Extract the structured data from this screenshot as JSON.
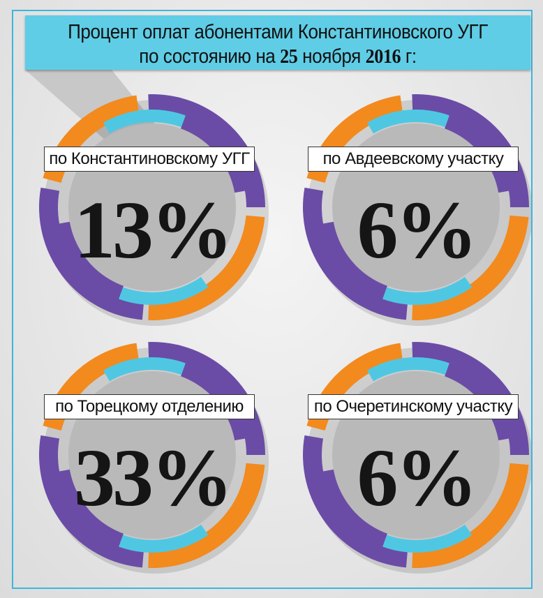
{
  "header": {
    "line1": "Процент оплат абонентами Константиновского УГГ",
    "line2": [
      "по состоянию на ",
      "25",
      " ноября ",
      "2016",
      " г:"
    ]
  },
  "panels": [
    {
      "label": "по Константиновскому УГГ",
      "value": "13%"
    },
    {
      "label": "по Авдеевскому участку",
      "value": "6%"
    },
    {
      "label": "по Торецкому отделению",
      "value": "33%"
    },
    {
      "label": "по Очеретинскому участку",
      "value": "6%"
    }
  ]
}
